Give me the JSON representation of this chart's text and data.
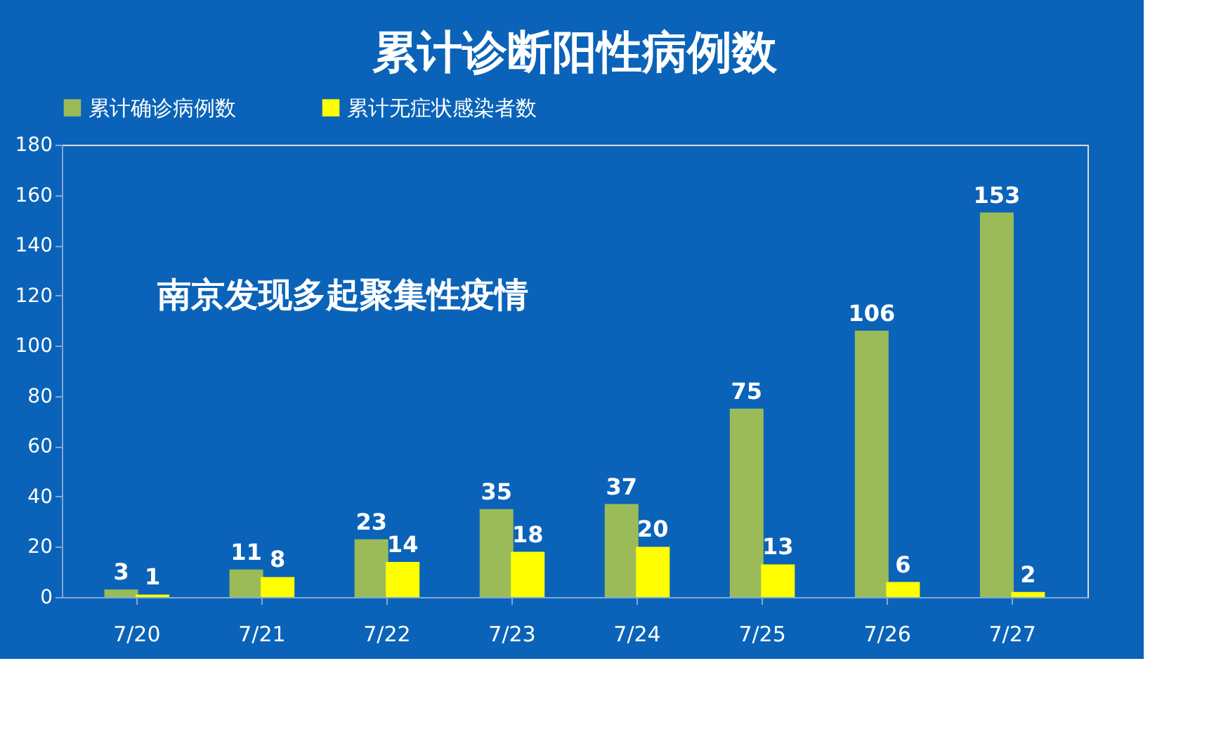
{
  "chart_data": {
    "type": "bar",
    "title": "累计诊断阳性病例数",
    "categories": [
      "7/20",
      "7/21",
      "7/22",
      "7/23",
      "7/24",
      "7/25",
      "7/26",
      "7/27"
    ],
    "series": [
      {
        "name": "累计确诊病例数",
        "color": "#9bbb59",
        "values": [
          3,
          11,
          23,
          35,
          37,
          75,
          106,
          153
        ]
      },
      {
        "name": "累计无症状感染者数",
        "color": "#ffff00",
        "values": [
          1,
          8,
          14,
          18,
          20,
          13,
          6,
          2
        ]
      }
    ],
    "ylim": [
      0,
      180
    ],
    "yticks": [
      0,
      20,
      40,
      60,
      80,
      100,
      120,
      140,
      160,
      180
    ],
    "grid": false,
    "legend": "top",
    "data_labels": true,
    "annotations": [
      "南京发现多起聚集性疫情"
    ]
  }
}
